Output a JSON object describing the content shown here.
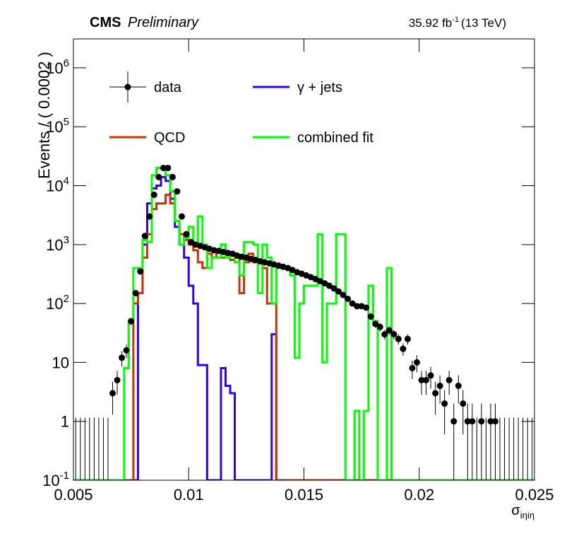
{
  "chart_data": {
    "type": "histogram",
    "title": "CMS",
    "subtitle": "Preliminary",
    "lumi": {
      "text": "35.92 fb",
      "exponent": "-1",
      "suffix": "(13 TeV)"
    },
    "ylabel": "Events / ( 0.0002 )",
    "xlabel": {
      "symbol": "σ",
      "subscript": "iηiη"
    },
    "log_y": true,
    "xlim": [
      0.005,
      0.025
    ],
    "ylim": [
      0.1,
      3100000
    ],
    "xticks": [
      0.005,
      0.01,
      0.015,
      0.02,
      0.025
    ],
    "yticks": [
      {
        "value": 0.1,
        "label": "10",
        "exponent": "-1"
      },
      1,
      10,
      {
        "value": 100,
        "label": "10",
        "exponent": "2"
      },
      {
        "value": 1000,
        "label": "10",
        "exponent": "3"
      },
      {
        "value": 10000,
        "label": "10",
        "exponent": "4"
      },
      {
        "value": 100000,
        "label": "10",
        "exponent": "5"
      },
      {
        "value": 1000000,
        "label": "10",
        "exponent": "6"
      }
    ],
    "x": [
      0.0051,
      0.0053,
      0.0055,
      0.0057,
      0.0059,
      0.0061,
      0.0063,
      0.0065,
      0.0067,
      0.0069,
      0.0071,
      0.0073,
      0.0075,
      0.0077,
      0.0079,
      0.0081,
      0.0083,
      0.0085,
      0.0087,
      0.0089,
      0.0091,
      0.0093,
      0.0095,
      0.0097,
      0.0099,
      0.0101,
      0.0103,
      0.0105,
      0.0107,
      0.0109,
      0.0111,
      0.0113,
      0.0115,
      0.0117,
      0.0119,
      0.0121,
      0.0123,
      0.0125,
      0.0127,
      0.0129,
      0.0131,
      0.0133,
      0.0135,
      0.0137,
      0.0139,
      0.0141,
      0.0143,
      0.0145,
      0.0147,
      0.0149,
      0.0151,
      0.0153,
      0.0155,
      0.0157,
      0.0159,
      0.0161,
      0.0163,
      0.0165,
      0.0167,
      0.0169,
      0.0171,
      0.0173,
      0.0175,
      0.0177,
      0.0179,
      0.0181,
      0.0183,
      0.0185,
      0.0187,
      0.0189,
      0.0191,
      0.0193,
      0.0195,
      0.0197,
      0.0199,
      0.0201,
      0.0203,
      0.0205,
      0.0207,
      0.0209,
      0.0211,
      0.0213,
      0.0215,
      0.0217,
      0.0219,
      0.0221,
      0.0223,
      0.0225,
      0.0227,
      0.0229,
      0.0231,
      0.0233,
      0.0235,
      0.0237,
      0.0239,
      0.0241,
      0.0243,
      0.0245,
      0.0247,
      0.0249
    ],
    "data": {
      "name": "data",
      "color": "#000000",
      "values": [
        0,
        0,
        0,
        0,
        0,
        0,
        0,
        0,
        3,
        5,
        12,
        16,
        50,
        150,
        350,
        1400,
        3000,
        7000,
        14000,
        20000,
        20000,
        14000,
        8000,
        3000,
        1500,
        1100,
        1000,
        950,
        900,
        850,
        800,
        780,
        750,
        720,
        700,
        650,
        620,
        600,
        570,
        550,
        520,
        500,
        480,
        460,
        440,
        420,
        400,
        370,
        340,
        320,
        300,
        280,
        260,
        240,
        220,
        200,
        180,
        160,
        140,
        120,
        100,
        90,
        90,
        85,
        60,
        45,
        40,
        30,
        35,
        30,
        25,
        17,
        25,
        8,
        10,
        5,
        5,
        6,
        3,
        4,
        2,
        5,
        1,
        4,
        2,
        1,
        1,
        0,
        1,
        0,
        1,
        1,
        0,
        0,
        0,
        0,
        0,
        0,
        0,
        0
      ],
      "errors": [
        1.15,
        1.15,
        1.15,
        1.15,
        1.15,
        1.15,
        1.15,
        1.15,
        1.7,
        2.2,
        3.5,
        4,
        7,
        12,
        19,
        37,
        55,
        84,
        118,
        141,
        141,
        118,
        89,
        55,
        39,
        33,
        32,
        31,
        30,
        29,
        28,
        28,
        27,
        27,
        26,
        25,
        25,
        24,
        24,
        23,
        23,
        22,
        22,
        21,
        21,
        20,
        20,
        19,
        18,
        18,
        17,
        17,
        16,
        15,
        15,
        14,
        13,
        13,
        12,
        11,
        10,
        9.5,
        9.5,
        9.2,
        7.7,
        6.7,
        6.3,
        5.5,
        5.9,
        5.5,
        5,
        4.1,
        5,
        2.8,
        3.2,
        2.2,
        2.2,
        2.4,
        1.7,
        2,
        1.4,
        2.2,
        1,
        2,
        1.4,
        1,
        1,
        1.15,
        1,
        1.15,
        1,
        1,
        1.15,
        1.15,
        1.15,
        1.15,
        1.15,
        1.15,
        1.15,
        1.15
      ]
    },
    "series": [
      {
        "name": "γ + jets",
        "color": "#3300ee",
        "values": [
          0,
          0,
          0,
          0,
          0,
          0,
          0,
          0,
          0,
          0,
          0,
          0,
          0,
          0,
          150,
          1000,
          5000,
          9000,
          10000,
          14000,
          12000,
          6000,
          2000,
          1000,
          600,
          200,
          100,
          9,
          9,
          0,
          0,
          0,
          8,
          4,
          3,
          0,
          0,
          0,
          0,
          0,
          0,
          0,
          0,
          30,
          0,
          0,
          0,
          0,
          0,
          0,
          0,
          0,
          0,
          0,
          0,
          0,
          0,
          0,
          0,
          0,
          0,
          0,
          0,
          0,
          0,
          0,
          0,
          0,
          0,
          0,
          0,
          0,
          0,
          0,
          0,
          0,
          0,
          0,
          0,
          0,
          0,
          0,
          0,
          0,
          0,
          0,
          0,
          0,
          0,
          0,
          0,
          0,
          0,
          0,
          0,
          0,
          0,
          0,
          0,
          0
        ]
      },
      {
        "name": "QCD",
        "color": "#cc3300",
        "values": [
          0,
          0,
          0,
          0,
          0,
          0,
          0,
          0,
          0,
          0,
          0,
          0,
          0,
          100,
          150,
          600,
          1500,
          4000,
          5000,
          5000,
          7000,
          5000,
          2500,
          1500,
          1200,
          1000,
          800,
          500,
          400,
          700,
          600,
          800,
          600,
          700,
          550,
          600,
          150,
          500,
          700,
          500,
          500,
          400,
          100,
          100,
          0,
          0,
          0,
          0,
          0,
          0,
          0,
          0,
          0,
          0,
          0,
          0,
          0,
          0,
          0,
          0,
          0,
          0,
          0,
          0,
          0,
          0,
          0,
          0,
          0,
          0,
          0,
          0,
          0,
          0,
          0,
          0,
          0,
          0,
          0,
          0,
          0,
          0,
          0,
          0,
          0,
          0,
          0,
          0,
          0,
          0,
          0,
          0,
          0,
          0,
          0,
          0,
          0,
          0,
          0,
          0
        ]
      },
      {
        "name": "combined fit",
        "color": "#00ff00",
        "values": [
          0,
          0,
          0,
          0,
          0,
          0,
          0,
          0,
          0,
          0,
          0,
          8,
          50,
          400,
          400,
          1200,
          1100,
          15000,
          20000,
          20000,
          15000,
          8000,
          2500,
          1000,
          1300,
          2000,
          1000,
          3000,
          1000,
          400,
          600,
          600,
          1000,
          600,
          700,
          500,
          300,
          1100,
          1100,
          1000,
          150,
          1000,
          600,
          100,
          400,
          400,
          400,
          300,
          12,
          100,
          200,
          200,
          200,
          1500,
          10,
          100,
          100,
          1500,
          1500,
          0,
          0,
          1.5,
          0,
          1.5,
          200,
          50,
          0,
          0,
          400,
          0,
          0,
          0,
          0,
          0,
          0,
          0,
          0,
          0,
          0,
          0,
          0,
          0,
          0,
          0,
          0,
          0,
          0,
          0,
          0,
          0,
          0,
          0,
          0,
          0,
          0,
          0,
          0,
          0,
          0,
          0
        ]
      }
    ]
  }
}
